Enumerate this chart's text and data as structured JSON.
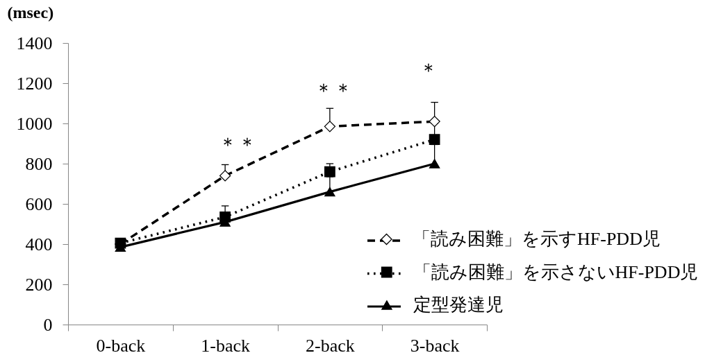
{
  "chart_data": {
    "type": "line",
    "ylabel": "(msec)",
    "categories": [
      "0-back",
      "1-back",
      "2-back",
      "3-back"
    ],
    "ylim": [
      0,
      1400
    ],
    "yticks": [
      0,
      200,
      400,
      600,
      800,
      1000,
      1200,
      1400
    ],
    "legend": "bottom right",
    "series": [
      {
        "name": "「読み困難」を示すHF-PDD児",
        "color": "#000000",
        "marker": "diamond",
        "line_style": "dashed",
        "values": [
          400,
          740,
          985,
          1010
        ],
        "errors": [
          null,
          [
            740,
            795
          ],
          [
            985,
            1075
          ],
          [
            1010,
            1105
          ]
        ]
      },
      {
        "name": "「読み困難」を示さないHF-PDD児",
        "color": "#000000",
        "marker": "square",
        "line_style": "dotted",
        "values": [
          405,
          535,
          760,
          920
        ],
        "errors": [
          null,
          [
            535,
            590
          ],
          [
            760,
            800
          ],
          [
            920,
            1000
          ]
        ]
      },
      {
        "name": "定型発達児",
        "color": "#000000",
        "marker": "triangle",
        "line_style": "solid",
        "values": [
          385,
          510,
          660,
          800
        ],
        "errors": [
          null,
          null,
          [
            660,
            735
          ],
          [
            800,
            895
          ]
        ]
      }
    ],
    "annotations": [
      "＊＊",
      "＊＊",
      "＊"
    ]
  }
}
